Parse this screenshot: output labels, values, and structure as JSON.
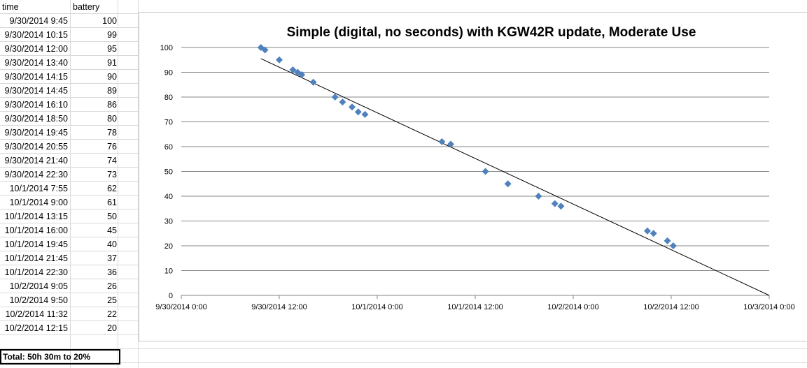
{
  "sheet": {
    "headers": {
      "time": "time",
      "battery": "battery"
    },
    "rows": [
      {
        "time": "9/30/2014 9:45",
        "battery": "100"
      },
      {
        "time": "9/30/2014 10:15",
        "battery": "99"
      },
      {
        "time": "9/30/2014 12:00",
        "battery": "95"
      },
      {
        "time": "9/30/2014 13:40",
        "battery": "91"
      },
      {
        "time": "9/30/2014 14:15",
        "battery": "90"
      },
      {
        "time": "9/30/2014 14:45",
        "battery": "89"
      },
      {
        "time": "9/30/2014 16:10",
        "battery": "86"
      },
      {
        "time": "9/30/2014 18:50",
        "battery": "80"
      },
      {
        "time": "9/30/2014 19:45",
        "battery": "78"
      },
      {
        "time": "9/30/2014 20:55",
        "battery": "76"
      },
      {
        "time": "9/30/2014 21:40",
        "battery": "74"
      },
      {
        "time": "9/30/2014 22:30",
        "battery": "73"
      },
      {
        "time": "10/1/2014 7:55",
        "battery": "62"
      },
      {
        "time": "10/1/2014 9:00",
        "battery": "61"
      },
      {
        "time": "10/1/2014 13:15",
        "battery": "50"
      },
      {
        "time": "10/1/2014 16:00",
        "battery": "45"
      },
      {
        "time": "10/1/2014 19:45",
        "battery": "40"
      },
      {
        "time": "10/1/2014 21:45",
        "battery": "37"
      },
      {
        "time": "10/1/2014 22:30",
        "battery": "36"
      },
      {
        "time": "10/2/2014 9:05",
        "battery": "26"
      },
      {
        "time": "10/2/2014 9:50",
        "battery": "25"
      },
      {
        "time": "10/2/2014 11:32",
        "battery": "22"
      },
      {
        "time": "10/2/2014 12:15",
        "battery": "20"
      }
    ],
    "total": "Total: 50h 30m to 20%"
  },
  "chart_data": {
    "type": "scatter",
    "title": "Simple (digital, no seconds) with KGW42R update, Moderate Use",
    "xlabel": "",
    "ylabel": "",
    "ylim": [
      0,
      100
    ],
    "yticks": [
      "0",
      "10",
      "20",
      "30",
      "40",
      "50",
      "60",
      "70",
      "80",
      "90",
      "100"
    ],
    "xlim": [
      "9/30/2014 0:00",
      "10/3/2014 0:00"
    ],
    "xticks": [
      "9/30/2014 0:00",
      "9/30/2014 12:00",
      "10/1/2014 0:00",
      "10/1/2014 12:00",
      "10/2/2014 0:00",
      "10/2/2014 12:00",
      "10/3/2014 0:00"
    ],
    "grid": "horizontal",
    "legend": "none",
    "marker": "diamond",
    "series": [
      {
        "x": [
          "9/30/2014 9:45",
          "9/30/2014 10:15",
          "9/30/2014 12:00",
          "9/30/2014 13:40",
          "9/30/2014 14:15",
          "9/30/2014 14:45",
          "9/30/2014 16:10",
          "9/30/2014 18:50",
          "9/30/2014 19:45",
          "9/30/2014 20:55",
          "9/30/2014 21:40",
          "9/30/2014 22:30",
          "10/1/2014 7:55",
          "10/1/2014 9:00",
          "10/1/2014 13:15",
          "10/1/2014 16:00",
          "10/1/2014 19:45",
          "10/1/2014 21:45",
          "10/1/2014 22:30",
          "10/2/2014 9:05",
          "10/2/2014 9:50",
          "10/2/2014 11:32",
          "10/2/2014 12:15"
        ],
        "y": [
          100,
          99,
          95,
          91,
          90,
          89,
          86,
          80,
          78,
          76,
          74,
          73,
          62,
          61,
          50,
          45,
          40,
          37,
          36,
          26,
          25,
          22,
          20
        ]
      }
    ],
    "trendline": {
      "type": "linear",
      "start": {
        "x": "9/30/2014 9:45",
        "y": 95.5
      },
      "end": {
        "x": "10/3/2014 0:00",
        "y": 0
      }
    },
    "colors": {
      "marker": "#4f81bd",
      "trendline": "#000000",
      "gridline": "#868686"
    }
  }
}
